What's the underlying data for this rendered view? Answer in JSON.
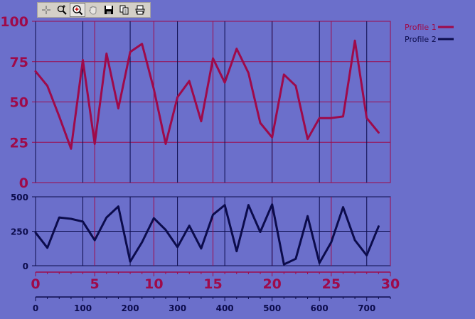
{
  "toolbar": {
    "tools": [
      {
        "icon": "crosshair-icon",
        "label": "Cursor",
        "active": false
      },
      {
        "icon": "zoom-icon",
        "label": "Zoom",
        "active": false
      },
      {
        "icon": "zoom-box-icon",
        "label": "Zoom box",
        "active": true
      },
      {
        "icon": "pan-hand-icon",
        "label": "Pan",
        "active": false
      },
      {
        "icon": "save-icon",
        "label": "Save",
        "active": false
      },
      {
        "icon": "copy-icon",
        "label": "Copy",
        "active": false
      },
      {
        "icon": "print-icon",
        "label": "Print",
        "active": false
      }
    ]
  },
  "colors": {
    "background": "#6b6fcb",
    "profile1": "#9e0a4a",
    "profile2": "#0c0c4c",
    "grid_profile1": "#9e0a4a",
    "grid_profile2": "#0c0c4c"
  },
  "chart_data": [
    {
      "type": "line",
      "series": [
        {
          "name": "Profile 1",
          "x": [
            0,
            1,
            2,
            3,
            4,
            5,
            6,
            7,
            8,
            9,
            10,
            11,
            12,
            13,
            14,
            15,
            16,
            17,
            18,
            19,
            20,
            21,
            22,
            23,
            24,
            25,
            26,
            27,
            28,
            29
          ],
          "values": [
            69,
            60,
            41,
            21,
            76,
            24,
            80,
            46,
            81,
            86,
            58,
            24,
            53,
            63,
            38,
            77,
            62,
            83,
            68,
            37,
            28,
            67,
            60,
            27,
            40,
            40,
            41,
            88,
            40,
            31
          ]
        }
      ],
      "x_axis": {
        "ticks": [
          "0",
          "5",
          "10",
          "15",
          "20",
          "25",
          "30"
        ],
        "range": [
          0,
          30
        ]
      },
      "y_axis": {
        "ticks": [
          "0",
          "25",
          "50",
          "75",
          "100"
        ],
        "range": [
          0,
          100
        ]
      },
      "grid": true,
      "legend": "top-right"
    },
    {
      "type": "line",
      "series": [
        {
          "name": "Profile 2",
          "x": [
            0,
            25,
            50,
            75,
            100,
            125,
            150,
            175,
            200,
            225,
            250,
            275,
            300,
            325,
            350,
            375,
            400,
            425,
            450,
            475,
            500,
            525,
            550,
            575,
            600,
            625,
            650,
            675,
            700,
            725
          ],
          "values": [
            240,
            130,
            350,
            340,
            320,
            185,
            350,
            430,
            30,
            170,
            345,
            260,
            135,
            290,
            125,
            370,
            440,
            105,
            440,
            245,
            445,
            10,
            50,
            360,
            20,
            170,
            425,
            185,
            75,
            285
          ]
        }
      ],
      "x_axis": {
        "ticks": [
          "0",
          "100",
          "200",
          "300",
          "400",
          "500",
          "600",
          "700"
        ],
        "range": [
          0,
          750
        ]
      },
      "y_axis": {
        "ticks": [
          "0",
          "250",
          "500"
        ],
        "range": [
          0,
          500
        ]
      },
      "grid": true,
      "legend": "top-right"
    }
  ]
}
